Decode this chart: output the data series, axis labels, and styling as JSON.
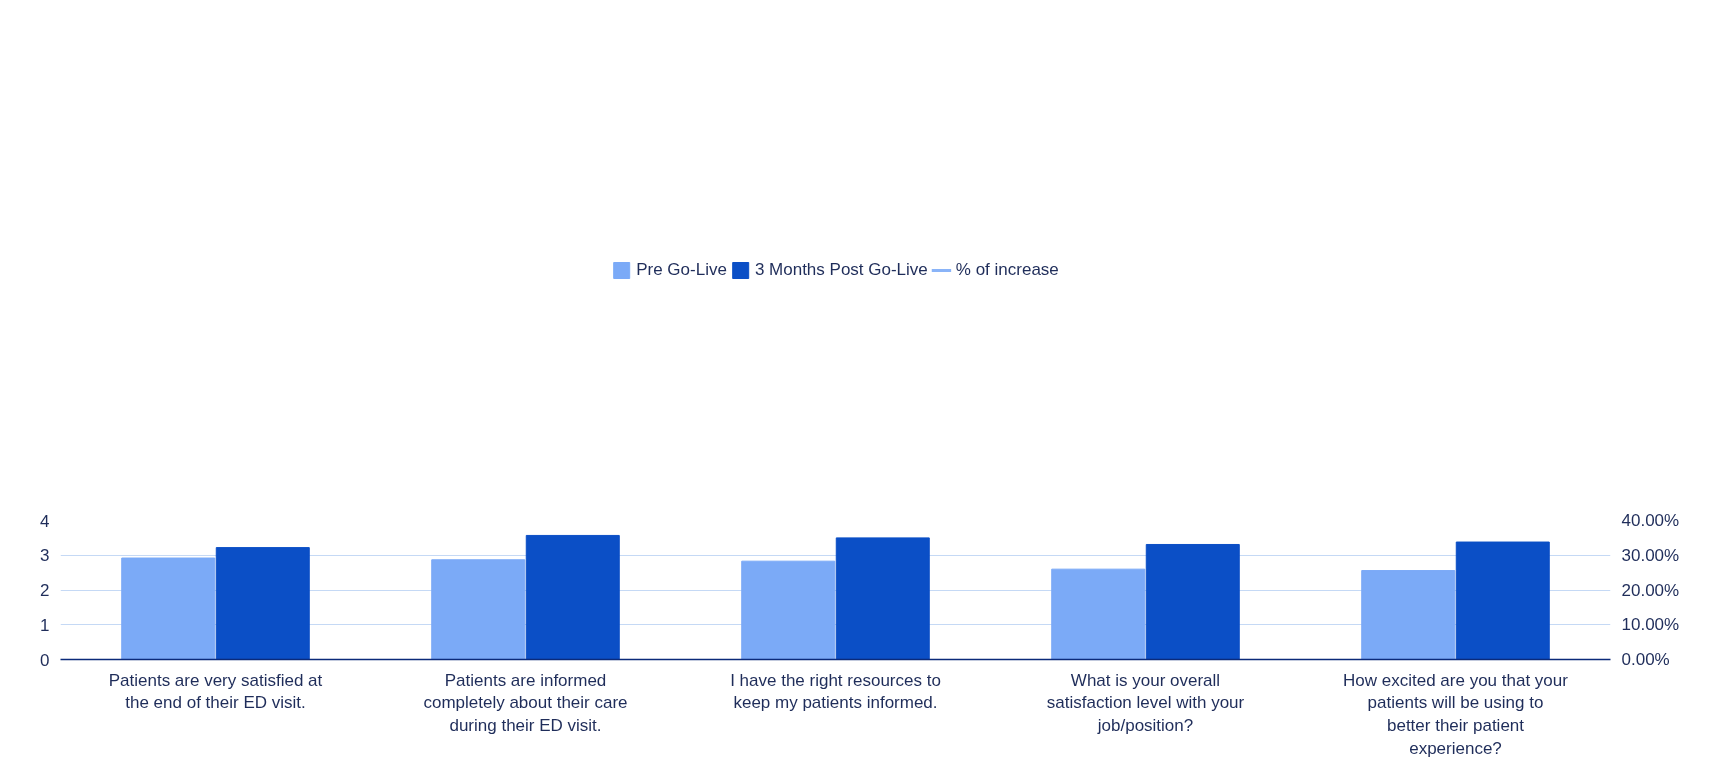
{
  "chart_data": {
    "type": "bar",
    "categories": [
      "Patients are very satisfied at the end of their ED visit.",
      "Patients are informed completely about their care during their ED visit.",
      "I have the right resources to keep my patients informed.",
      "What is your overall satisfaction level with your job/position?",
      "How excited are you that your patients will be using to better their patient experience?"
    ],
    "series": [
      {
        "name": "Pre Go-Live",
        "color": "#7baaf7",
        "values": [
          2.92,
          2.87,
          2.83,
          2.6,
          2.56
        ]
      },
      {
        "name": "3 Months Post Go-Live",
        "color": "#0b4fc6",
        "values": [
          3.22,
          3.57,
          3.5,
          3.31,
          3.38
        ]
      },
      {
        "name": "% of increase",
        "color": "#8ab4f8",
        "type": "line",
        "values": [
          null,
          null,
          null,
          null,
          null
        ]
      }
    ],
    "ylim": [
      0,
      4
    ],
    "yticks": [
      0,
      1,
      2,
      3,
      4
    ],
    "y2lim": [
      0,
      40
    ],
    "y2ticks": [
      {
        "value": 0,
        "label": "0.00%"
      },
      {
        "value": 10,
        "label": "10.00%"
      },
      {
        "value": 20,
        "label": "20.00%"
      },
      {
        "value": 30,
        "label": "30.00%"
      },
      {
        "value": 40,
        "label": "40.00%"
      }
    ],
    "grid": "y",
    "legend": "top"
  }
}
